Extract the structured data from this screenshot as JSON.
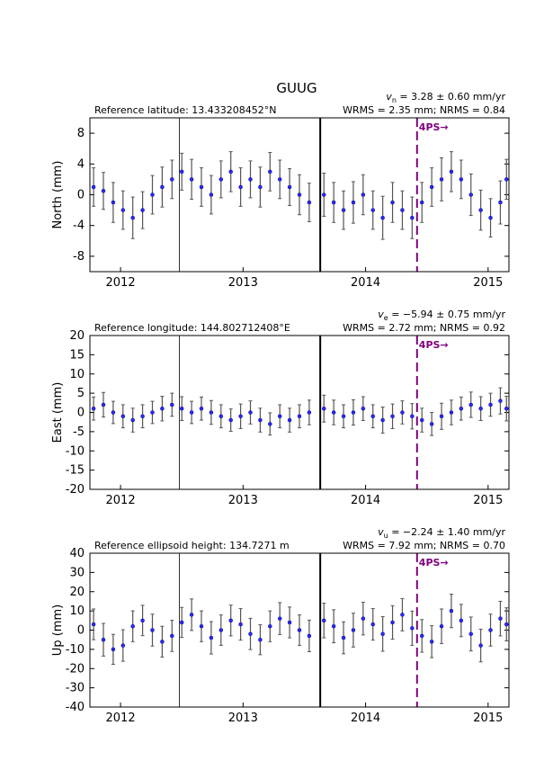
{
  "title": "GUUG",
  "chart_data": [
    {
      "type": "errorbar",
      "ylabel": "North (mm)",
      "reference": "Reference latitude: 13.433208452°N",
      "velocity_symbol": "v",
      "velocity_subscript": "n",
      "velocity_text": " = 3.28 ± 0.60 mm/yr",
      "stats": "WRMS = 2.35 mm; NRMS = 0.84",
      "xlim": [
        2011.75,
        2015.17
      ],
      "xticks": [
        2012,
        2013,
        2014,
        2015
      ],
      "ylim": [
        -10,
        10
      ],
      "yticks": [
        -8,
        -4,
        0,
        4,
        8
      ],
      "point_color": "#2b2bff",
      "error_color": "#555555",
      "vlines": [
        {
          "x": 2012.48,
          "style": "thin"
        },
        {
          "x": 2013.63,
          "style": "thick"
        }
      ],
      "event": {
        "x": 2014.42,
        "label": "4PS→",
        "color": "#800080"
      },
      "x": [
        2011.78,
        2011.86,
        2011.94,
        2012.02,
        2012.1,
        2012.18,
        2012.26,
        2012.34,
        2012.42,
        2012.5,
        2012.58,
        2012.66,
        2012.74,
        2012.82,
        2012.9,
        2012.98,
        2013.06,
        2013.14,
        2013.22,
        2013.3,
        2013.38,
        2013.46,
        2013.54,
        2013.66,
        2013.74,
        2013.82,
        2013.9,
        2013.98,
        2014.06,
        2014.14,
        2014.22,
        2014.3,
        2014.38,
        2014.46,
        2014.54,
        2014.62,
        2014.7,
        2014.78,
        2014.86,
        2014.94,
        2015.02,
        2015.1,
        2015.15
      ],
      "values": [
        1,
        0.5,
        -1,
        -2,
        -3,
        -2,
        0,
        1,
        2,
        3,
        2,
        1,
        0,
        2,
        3,
        1,
        2,
        1,
        3,
        2,
        1,
        0,
        -1,
        0,
        -1,
        -2,
        -1,
        0,
        -2,
        -3,
        -1,
        -2,
        -3,
        -1,
        1,
        2,
        3,
        2,
        0,
        -2,
        -3,
        -1,
        2
      ],
      "errors": [
        2.5,
        2.4,
        2.6,
        2.5,
        2.7,
        2.4,
        2.5,
        2.6,
        2.5,
        2.4,
        2.6,
        2.5,
        2.5,
        2.4,
        2.6,
        2.5,
        2.4,
        2.6,
        2.5,
        2.5,
        2.4,
        2.6,
        2.5,
        2.8,
        2.6,
        2.5,
        2.7,
        2.6,
        2.5,
        2.8,
        2.6,
        2.5,
        2.7,
        2.6,
        2.5,
        2.8,
        2.6,
        2.5,
        2.7,
        2.6,
        2.5,
        2.8,
        2.6
      ]
    },
    {
      "type": "errorbar",
      "ylabel": "East (mm)",
      "reference": "Reference longitude: 144.802712408°E",
      "velocity_symbol": "v",
      "velocity_subscript": "e",
      "velocity_text": " = −5.94 ± 0.75 mm/yr",
      "stats": "WRMS = 2.72 mm; NRMS = 0.92",
      "xlim": [
        2011.75,
        2015.17
      ],
      "xticks": [
        2012,
        2013,
        2014,
        2015
      ],
      "ylim": [
        -20,
        20
      ],
      "yticks": [
        -20,
        -15,
        -10,
        -5,
        0,
        5,
        10,
        15,
        20
      ],
      "point_color": "#2b2bff",
      "error_color": "#555555",
      "vlines": [
        {
          "x": 2012.48,
          "style": "thin"
        },
        {
          "x": 2013.63,
          "style": "thick"
        }
      ],
      "event": {
        "x": 2014.42,
        "label": "4PS→",
        "color": "#800080"
      },
      "x": [
        2011.78,
        2011.86,
        2011.94,
        2012.02,
        2012.1,
        2012.18,
        2012.26,
        2012.34,
        2012.42,
        2012.5,
        2012.58,
        2012.66,
        2012.74,
        2012.82,
        2012.9,
        2012.98,
        2013.06,
        2013.14,
        2013.22,
        2013.3,
        2013.38,
        2013.46,
        2013.54,
        2013.66,
        2013.74,
        2013.82,
        2013.9,
        2013.98,
        2014.06,
        2014.14,
        2014.22,
        2014.3,
        2014.38,
        2014.46,
        2014.54,
        2014.62,
        2014.7,
        2014.78,
        2014.86,
        2014.94,
        2015.02,
        2015.1,
        2015.15
      ],
      "values": [
        1,
        2,
        0,
        -1,
        -2,
        -1,
        0,
        1,
        2,
        1,
        0,
        1,
        0,
        -1,
        -2,
        -1,
        0,
        -2,
        -3,
        -1,
        -2,
        -1,
        0,
        1,
        0,
        -1,
        0,
        1,
        -1,
        -2,
        -1,
        0,
        -1,
        -2,
        -3,
        -1,
        0,
        1,
        2,
        1,
        2,
        3,
        1
      ],
      "errors": [
        3,
        3.2,
        2.9,
        3,
        3.1,
        3,
        2.9,
        3.2,
        3,
        3.1,
        2.9,
        3,
        3.1,
        3,
        2.9,
        3.2,
        3,
        3.1,
        2.9,
        3,
        3.1,
        3,
        3.2,
        3.5,
        3.2,
        3,
        3.3,
        3.1,
        3,
        3.4,
        3.2,
        3,
        3.3,
        3.1,
        3,
        3.4,
        3.2,
        3,
        3.3,
        3.1,
        3,
        3.4,
        3.2
      ]
    },
    {
      "type": "errorbar",
      "ylabel": "Up (mm)",
      "reference": "Reference ellipsoid height: 134.7271 m",
      "velocity_symbol": "v",
      "velocity_subscript": "u",
      "velocity_text": " = −2.24 ± 1.40 mm/yr",
      "stats": "WRMS = 7.92 mm; NRMS = 0.70",
      "xlim": [
        2011.75,
        2015.17
      ],
      "xticks": [
        2012,
        2013,
        2014,
        2015
      ],
      "ylim": [
        -40,
        40
      ],
      "yticks": [
        -40,
        -30,
        -20,
        -10,
        0,
        10,
        20,
        30,
        40
      ],
      "point_color": "#2b2bff",
      "error_color": "#555555",
      "vlines": [
        {
          "x": 2012.48,
          "style": "thin"
        },
        {
          "x": 2013.63,
          "style": "thick"
        }
      ],
      "event": {
        "x": 2014.42,
        "label": "4PS→",
        "color": "#800080"
      },
      "x": [
        2011.78,
        2011.86,
        2011.94,
        2012.02,
        2012.1,
        2012.18,
        2012.26,
        2012.34,
        2012.42,
        2012.5,
        2012.58,
        2012.66,
        2012.74,
        2012.82,
        2012.9,
        2012.98,
        2013.06,
        2013.14,
        2013.22,
        2013.3,
        2013.38,
        2013.46,
        2013.54,
        2013.66,
        2013.74,
        2013.82,
        2013.9,
        2013.98,
        2014.06,
        2014.14,
        2014.22,
        2014.3,
        2014.38,
        2014.46,
        2014.54,
        2014.62,
        2014.7,
        2014.78,
        2014.86,
        2014.94,
        2015.02,
        2015.1,
        2015.15
      ],
      "values": [
        3,
        -5,
        -10,
        -8,
        2,
        5,
        0,
        -6,
        -3,
        4,
        8,
        2,
        -4,
        0,
        5,
        3,
        -2,
        -5,
        2,
        6,
        4,
        0,
        -3,
        5,
        2,
        -4,
        0,
        6,
        3,
        -2,
        4,
        8,
        1,
        -3,
        -6,
        2,
        10,
        5,
        -2,
        -8,
        0,
        6,
        3
      ],
      "errors": [
        8,
        8.5,
        7.8,
        8.2,
        8,
        7.9,
        8.3,
        8,
        8.1,
        7.8,
        8.2,
        8,
        8.4,
        7.9,
        8,
        8.2,
        8.1,
        7.8,
        8,
        8.3,
        8,
        7.9,
        8.2,
        9,
        8.6,
        8.3,
        8.8,
        8.5,
        8.2,
        9,
        8.7,
        8.4,
        8.9,
        8.5,
        8.3,
        9,
        8.7,
        8.4,
        8.8,
        8.5,
        8.3,
        9,
        8.6
      ]
    }
  ]
}
